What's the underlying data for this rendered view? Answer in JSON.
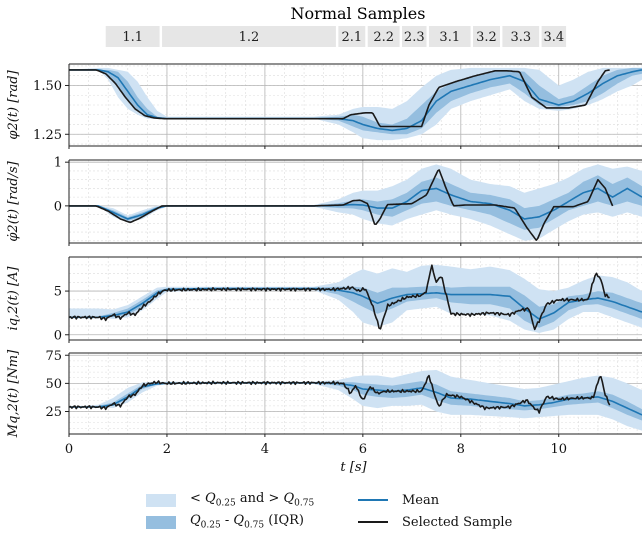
{
  "chart_data": {
    "type": "line",
    "title": "Normal Samples",
    "phases": [
      "1.1",
      "1.2",
      "2.1",
      "2.2",
      "2.3",
      "3.1",
      "3.2",
      "3.3",
      "3.4"
    ],
    "phase_ranges": [
      [
        0.75,
        1.85
      ],
      [
        1.9,
        5.45
      ],
      [
        5.5,
        6.05
      ],
      [
        6.1,
        6.75
      ],
      [
        6.8,
        7.3
      ],
      [
        7.35,
        8.2
      ],
      [
        8.25,
        8.8
      ],
      [
        8.85,
        9.6
      ],
      [
        9.65,
        10.15
      ]
    ],
    "xlabel": "t [s]",
    "xlim": [
      0,
      11.7
    ],
    "xticks": [
      0,
      2,
      4,
      6,
      8,
      10
    ],
    "colors": {
      "outer_band": "#cfe2f3",
      "iqr_band": "#95bedf",
      "mean": "#1f77b4",
      "sample": "#1a1a1a"
    },
    "legend": [
      {
        "kind": "outer_band",
        "label": "< Q0.25 and > Q0.75"
      },
      {
        "kind": "iqr_band",
        "label": "Q0.25 - Q0.75 (IQR)"
      },
      {
        "kind": "mean",
        "label": "Mean"
      },
      {
        "kind": "sample",
        "label": "Selected Sample"
      }
    ],
    "panels": [
      {
        "ylabel": "φ2(t) [rad]",
        "ylim": [
          1.19,
          1.61
        ],
        "yticks": [
          1.25,
          1.5
        ],
        "ytick_labels": [
          "1.25",
          "1.50"
        ],
        "x": [
          0,
          0.6,
          0.8,
          1.0,
          1.2,
          1.4,
          1.6,
          1.8,
          2.0,
          3.0,
          4.0,
          5.0,
          5.5,
          5.8,
          6.0,
          6.3,
          6.6,
          6.9,
          7.2,
          7.5,
          7.8,
          8.2,
          8.6,
          9.0,
          9.3,
          9.6,
          10.0,
          10.3,
          10.6,
          10.9,
          11.2,
          11.5,
          11.7
        ],
        "mean": [
          1.58,
          1.58,
          1.57,
          1.54,
          1.47,
          1.4,
          1.35,
          1.335,
          1.33,
          1.33,
          1.33,
          1.33,
          1.33,
          1.32,
          1.3,
          1.28,
          1.27,
          1.28,
          1.32,
          1.42,
          1.47,
          1.5,
          1.53,
          1.55,
          1.52,
          1.43,
          1.4,
          1.42,
          1.46,
          1.51,
          1.55,
          1.57,
          1.58
        ],
        "iqr_lo": [
          1.58,
          1.58,
          1.55,
          1.5,
          1.43,
          1.37,
          1.34,
          1.33,
          1.33,
          1.33,
          1.33,
          1.33,
          1.32,
          1.29,
          1.27,
          1.26,
          1.25,
          1.25,
          1.28,
          1.36,
          1.42,
          1.46,
          1.49,
          1.51,
          1.46,
          1.4,
          1.39,
          1.4,
          1.42,
          1.46,
          1.51,
          1.55,
          1.56
        ],
        "iqr_hi": [
          1.58,
          1.58,
          1.58,
          1.57,
          1.52,
          1.44,
          1.38,
          1.34,
          1.335,
          1.335,
          1.335,
          1.335,
          1.34,
          1.35,
          1.34,
          1.31,
          1.3,
          1.33,
          1.4,
          1.47,
          1.51,
          1.54,
          1.57,
          1.58,
          1.57,
          1.5,
          1.43,
          1.45,
          1.5,
          1.55,
          1.58,
          1.59,
          1.59
        ],
        "out_lo": [
          1.58,
          1.58,
          1.53,
          1.44,
          1.38,
          1.35,
          1.33,
          1.33,
          1.33,
          1.33,
          1.33,
          1.33,
          1.3,
          1.26,
          1.23,
          1.22,
          1.22,
          1.23,
          1.25,
          1.3,
          1.38,
          1.42,
          1.45,
          1.48,
          1.42,
          1.38,
          1.37,
          1.38,
          1.4,
          1.43,
          1.47,
          1.5,
          1.53
        ],
        "out_hi": [
          1.58,
          1.59,
          1.59,
          1.58,
          1.57,
          1.52,
          1.44,
          1.37,
          1.34,
          1.34,
          1.34,
          1.34,
          1.35,
          1.38,
          1.39,
          1.39,
          1.38,
          1.42,
          1.49,
          1.55,
          1.58,
          1.59,
          1.59,
          1.59,
          1.59,
          1.58,
          1.5,
          1.53,
          1.57,
          1.59,
          1.59,
          1.59,
          1.59
        ],
        "sample_x": [
          0,
          0.55,
          0.75,
          0.95,
          1.15,
          1.35,
          1.55,
          1.75,
          1.95,
          3.0,
          4.5,
          5.6,
          5.75,
          6.05,
          6.2,
          6.35,
          6.9,
          7.2,
          7.35,
          7.55,
          7.9,
          8.3,
          8.7,
          8.95,
          9.2,
          9.45,
          9.75,
          10.2,
          10.55,
          10.8,
          10.95,
          11.05
        ],
        "sample_y": [
          1.58,
          1.58,
          1.56,
          1.51,
          1.44,
          1.38,
          1.345,
          1.333,
          1.33,
          1.33,
          1.33,
          1.33,
          1.35,
          1.36,
          1.36,
          1.29,
          1.29,
          1.29,
          1.4,
          1.49,
          1.52,
          1.55,
          1.575,
          1.575,
          1.57,
          1.44,
          1.385,
          1.385,
          1.4,
          1.52,
          1.575,
          1.58
        ]
      },
      {
        "ylabel": "φ̇2(t) [rad/s]",
        "ylim": [
          -0.85,
          1.05
        ],
        "yticks": [
          0,
          1
        ],
        "ytick_labels": [
          "0",
          "1"
        ],
        "x": [
          0,
          0.6,
          0.9,
          1.2,
          1.5,
          1.8,
          2.0,
          3.0,
          4.0,
          5.0,
          5.5,
          5.8,
          6.0,
          6.3,
          6.6,
          6.9,
          7.2,
          7.5,
          7.8,
          8.2,
          8.6,
          9.0,
          9.3,
          9.6,
          9.9,
          10.2,
          10.5,
          10.8,
          11.1,
          11.4,
          11.7
        ],
        "mean": [
          0,
          0,
          -0.15,
          -0.3,
          -0.2,
          -0.05,
          0,
          0,
          0,
          0,
          0.01,
          0.03,
          0.02,
          -0.05,
          -0.05,
          0.1,
          0.35,
          0.4,
          0.25,
          0.1,
          0.05,
          -0.1,
          -0.3,
          -0.25,
          -0.1,
          0.1,
          0.3,
          0.4,
          0.2,
          0.4,
          0.2
        ],
        "iqr_lo": [
          0,
          0,
          -0.2,
          -0.34,
          -0.25,
          -0.08,
          -0.01,
          0,
          0,
          -0.01,
          -0.05,
          -0.06,
          -0.1,
          -0.2,
          -0.25,
          -0.1,
          0.05,
          0.1,
          0,
          -0.1,
          -0.2,
          -0.4,
          -0.55,
          -0.5,
          -0.3,
          -0.1,
          0,
          0.1,
          0,
          0.1,
          0
        ],
        "iqr_hi": [
          0,
          0,
          -0.1,
          -0.26,
          -0.15,
          -0.02,
          0.01,
          0,
          0,
          0.01,
          0.06,
          0.12,
          0.15,
          0.1,
          0.15,
          0.3,
          0.55,
          0.65,
          0.5,
          0.3,
          0.25,
          0.15,
          -0.05,
          0,
          0.15,
          0.3,
          0.55,
          0.7,
          0.5,
          0.65,
          0.45
        ],
        "out_lo": [
          0,
          0,
          -0.25,
          -0.38,
          -0.3,
          -0.1,
          -0.02,
          0,
          0,
          -0.02,
          -0.15,
          -0.2,
          -0.3,
          -0.4,
          -0.45,
          -0.3,
          -0.2,
          -0.1,
          -0.2,
          -0.3,
          -0.45,
          -0.65,
          -0.8,
          -0.75,
          -0.55,
          -0.35,
          -0.2,
          -0.15,
          -0.25,
          -0.15,
          -0.25
        ],
        "out_hi": [
          0,
          0,
          -0.05,
          -0.22,
          -0.1,
          0,
          0.02,
          0,
          0,
          0.02,
          0.15,
          0.3,
          0.35,
          0.35,
          0.45,
          0.6,
          0.85,
          0.95,
          0.85,
          0.6,
          0.5,
          0.45,
          0.3,
          0.4,
          0.5,
          0.65,
          0.85,
          0.95,
          0.85,
          0.9,
          0.8
        ],
        "sample_x": [
          0,
          0.55,
          0.8,
          1.05,
          1.25,
          1.45,
          1.7,
          1.9,
          3.0,
          5.0,
          5.6,
          5.8,
          5.95,
          6.1,
          6.25,
          6.35,
          6.5,
          7.0,
          7.3,
          7.55,
          7.7,
          7.85,
          8.1,
          8.7,
          9.1,
          9.35,
          9.55,
          9.7,
          9.9,
          10.3,
          10.6,
          10.8,
          10.95,
          11.1
        ],
        "sample_y": [
          0,
          0,
          -0.12,
          -0.3,
          -0.38,
          -0.28,
          -0.12,
          0,
          0,
          0,
          0.02,
          0.12,
          0.13,
          0.05,
          -0.45,
          -0.3,
          0.03,
          0.05,
          0.25,
          0.85,
          0.4,
          0,
          0.02,
          0.02,
          -0.05,
          -0.5,
          -0.8,
          -0.4,
          -0.02,
          -0.02,
          0.1,
          0.6,
          0.4,
          0
        ]
      },
      {
        "ylabel": "iq,2(t) [A]",
        "ylim": [
          -0.6,
          8.9
        ],
        "yticks": [
          0,
          5
        ],
        "ytick_labels": [
          "0",
          "5"
        ],
        "x": [
          0,
          0.6,
          0.9,
          1.2,
          1.5,
          1.8,
          2.0,
          3.0,
          4.0,
          5.0,
          5.5,
          5.8,
          6.0,
          6.3,
          6.6,
          6.9,
          7.2,
          7.5,
          7.8,
          8.2,
          8.6,
          9.0,
          9.3,
          9.6,
          9.9,
          10.2,
          10.5,
          10.8,
          11.1,
          11.4,
          11.7
        ],
        "mean": [
          2.0,
          2.0,
          2.2,
          2.6,
          3.6,
          4.8,
          5.2,
          5.3,
          5.3,
          5.3,
          5.1,
          4.8,
          4.4,
          3.6,
          4.2,
          4.6,
          4.7,
          4.8,
          4.6,
          4.6,
          4.6,
          4.4,
          3.0,
          1.8,
          2.5,
          3.7,
          4.0,
          4.2,
          3.8,
          3.2,
          2.6
        ],
        "iqr_lo": [
          2.0,
          2.0,
          2.0,
          2.3,
          3.2,
          4.5,
          5.1,
          5.2,
          5.2,
          5.2,
          4.6,
          3.8,
          3.2,
          2.4,
          3.0,
          3.8,
          4.0,
          4.2,
          3.7,
          3.5,
          3.5,
          3.0,
          1.6,
          0.8,
          1.5,
          2.8,
          3.4,
          3.5,
          3.0,
          2.4,
          1.8
        ],
        "iqr_hi": [
          2.0,
          2.1,
          2.5,
          3.0,
          4.0,
          5.1,
          5.3,
          5.4,
          5.4,
          5.4,
          5.5,
          5.5,
          5.4,
          4.8,
          5.4,
          5.4,
          5.5,
          5.6,
          5.4,
          5.5,
          5.5,
          5.5,
          4.5,
          3.2,
          3.5,
          4.4,
          4.6,
          5.0,
          4.8,
          4.2,
          3.6
        ],
        "out_lo": [
          2.0,
          2.0,
          1.8,
          2.0,
          2.8,
          4.1,
          4.9,
          5.1,
          5.1,
          5.1,
          4.0,
          2.6,
          1.4,
          0.9,
          1.4,
          2.8,
          3.0,
          3.2,
          2.4,
          2.4,
          2.2,
          1.6,
          0.6,
          0.2,
          0.6,
          1.8,
          2.6,
          2.6,
          2.0,
          1.4,
          0.8
        ],
        "out_hi": [
          3.0,
          3.0,
          2.9,
          3.4,
          4.4,
          5.4,
          5.5,
          5.5,
          5.5,
          5.5,
          6.0,
          7.0,
          7.5,
          7.0,
          7.6,
          7.2,
          7.9,
          8.0,
          7.8,
          7.5,
          7.8,
          7.4,
          6.4,
          5.2,
          5.0,
          5.4,
          6.2,
          6.8,
          6.6,
          6.0,
          5.0
        ],
        "sample_x": [
          0,
          0.6,
          0.75,
          0.9,
          1.05,
          1.2,
          1.35,
          1.5,
          1.65,
          1.8,
          1.95,
          3.0,
          5.4,
          5.6,
          5.8,
          5.9,
          6.05,
          6.2,
          6.35,
          6.5,
          6.9,
          7.2,
          7.3,
          7.4,
          7.5,
          7.6,
          7.8,
          8.2,
          8.6,
          9.0,
          9.2,
          9.4,
          9.5,
          9.6,
          9.75,
          10.0,
          10.3,
          10.6,
          10.75,
          10.85,
          10.95,
          11.05
        ],
        "sample_y": [
          2.0,
          2.0,
          1.8,
          2.3,
          1.9,
          2.5,
          2.3,
          3.2,
          3.8,
          4.6,
          5.1,
          5.2,
          5.2,
          5.3,
          5.4,
          5.0,
          5.3,
          3.3,
          0.5,
          3.3,
          4.3,
          4.5,
          5.0,
          8.0,
          6.0,
          6.8,
          2.4,
          2.3,
          2.5,
          2.3,
          2.8,
          3.0,
          0.6,
          1.6,
          3.5,
          4.0,
          4.0,
          4.0,
          7.0,
          6.5,
          4.5,
          4.3
        ]
      },
      {
        "ylabel": "Mq,2(t) [Nm]",
        "ylim": [
          5,
          77
        ],
        "yticks": [
          25,
          50,
          75
        ],
        "ytick_labels": [
          "25",
          "50",
          "75"
        ],
        "x": [
          0,
          0.6,
          0.9,
          1.2,
          1.5,
          1.8,
          2.0,
          3.0,
          4.0,
          5.0,
          5.5,
          5.8,
          6.0,
          6.3,
          6.6,
          6.9,
          7.2,
          7.5,
          7.8,
          8.2,
          8.6,
          9.0,
          9.3,
          9.6,
          9.9,
          10.2,
          10.5,
          10.8,
          11.1,
          11.4,
          11.7
        ],
        "mean": [
          29,
          29,
          31,
          38,
          47,
          49.5,
          50,
          50.5,
          50.5,
          50.5,
          50,
          48,
          45,
          44,
          43,
          44,
          46,
          42,
          37,
          36,
          34,
          32,
          30,
          31,
          33,
          36,
          37,
          38,
          34,
          28,
          22
        ],
        "iqr_lo": [
          29,
          29,
          30,
          36,
          45,
          49,
          50,
          50,
          50,
          50,
          48,
          44,
          40,
          38,
          37,
          38,
          40,
          35,
          31,
          30,
          28,
          27,
          26,
          27,
          29,
          31,
          32,
          33,
          28,
          22,
          17
        ],
        "iqr_hi": [
          29,
          30,
          33,
          41,
          49,
          50.5,
          50.7,
          50.8,
          50.8,
          50.8,
          51,
          51,
          50,
          49,
          48,
          50,
          52,
          49,
          43,
          41,
          39,
          37,
          34,
          35,
          37,
          40,
          41,
          43,
          40,
          34,
          27
        ],
        "out_lo": [
          29,
          29,
          28,
          33,
          42,
          48,
          49.5,
          49.5,
          49.5,
          49.5,
          44,
          36,
          30,
          28,
          30,
          30,
          31,
          25,
          22,
          22,
          21,
          20,
          19,
          20,
          21,
          22,
          22,
          22,
          18,
          12,
          8
        ],
        "out_hi": [
          29,
          31,
          37,
          46,
          51,
          51.5,
          51.5,
          51.5,
          51.5,
          51.5,
          53,
          56,
          57,
          57,
          55,
          58,
          61,
          62,
          56,
          53,
          50,
          47,
          45,
          46,
          49,
          52,
          55,
          57,
          55,
          50,
          44
        ],
        "sample_x": [
          0,
          0.6,
          0.75,
          0.9,
          1.05,
          1.2,
          1.35,
          1.5,
          1.65,
          1.8,
          1.95,
          3.0,
          5.4,
          5.6,
          5.75,
          5.85,
          6.0,
          6.15,
          6.3,
          6.45,
          6.9,
          7.2,
          7.35,
          7.45,
          7.55,
          7.7,
          8.0,
          8.5,
          9.0,
          9.35,
          9.5,
          9.6,
          9.75,
          10.0,
          10.4,
          10.7,
          10.85,
          10.95,
          11.05
        ],
        "sample_y": [
          29,
          29,
          28,
          32,
          30,
          38,
          40,
          48,
          50,
          51,
          50,
          50.5,
          50.5,
          50,
          41,
          48,
          35,
          47,
          41,
          43,
          43,
          43,
          57,
          42,
          29,
          40,
          38,
          28,
          29,
          35,
          28,
          25,
          38,
          36,
          37,
          37,
          58,
          40,
          30
        ]
      }
    ]
  }
}
